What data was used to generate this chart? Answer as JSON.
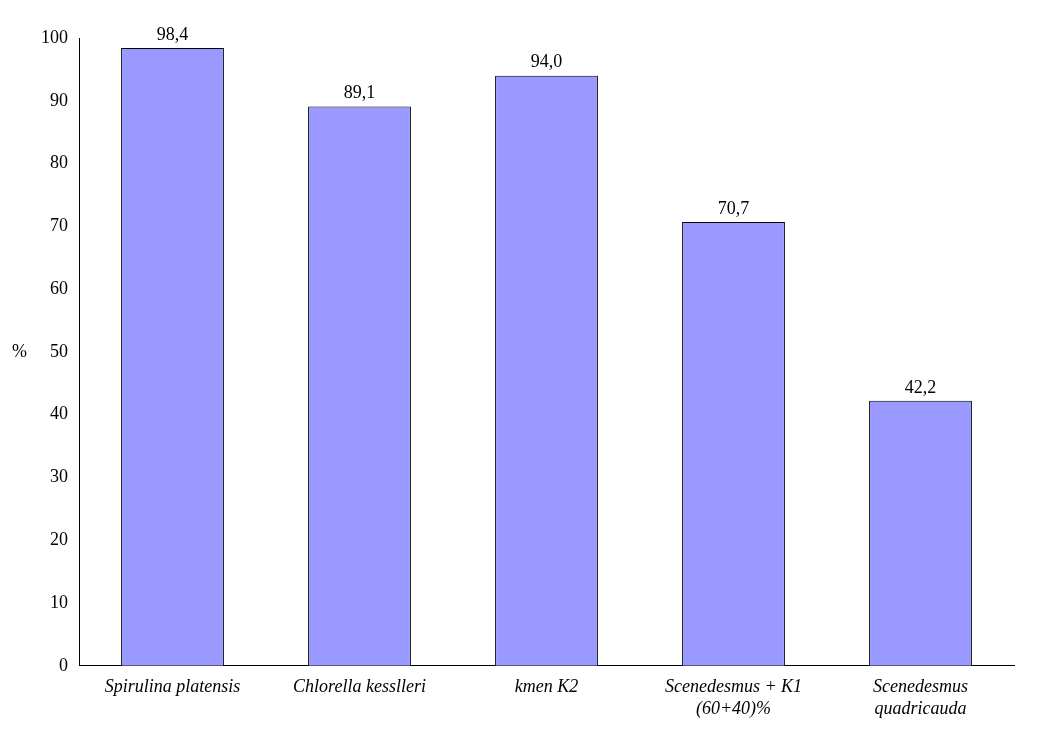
{
  "chart_data": {
    "type": "bar",
    "ylabel": "%",
    "categories": [
      "Spirulina platensis",
      "Chlorella kesslleri",
      "kmen K2",
      "Scenedesmus + K1\n(60+40)%",
      "Scenedesmus\nquadricauda"
    ],
    "values": [
      98.4,
      89.1,
      94.0,
      70.7,
      42.2
    ],
    "value_labels": [
      "98,4",
      "89,1",
      "94,0",
      "70,7",
      "42,2"
    ],
    "color": "#9999ff",
    "ylim": [
      0,
      100
    ],
    "yticks": [
      0,
      10,
      20,
      30,
      40,
      50,
      60,
      70,
      80,
      90,
      100
    ],
    "grid": false,
    "legend": false
  }
}
